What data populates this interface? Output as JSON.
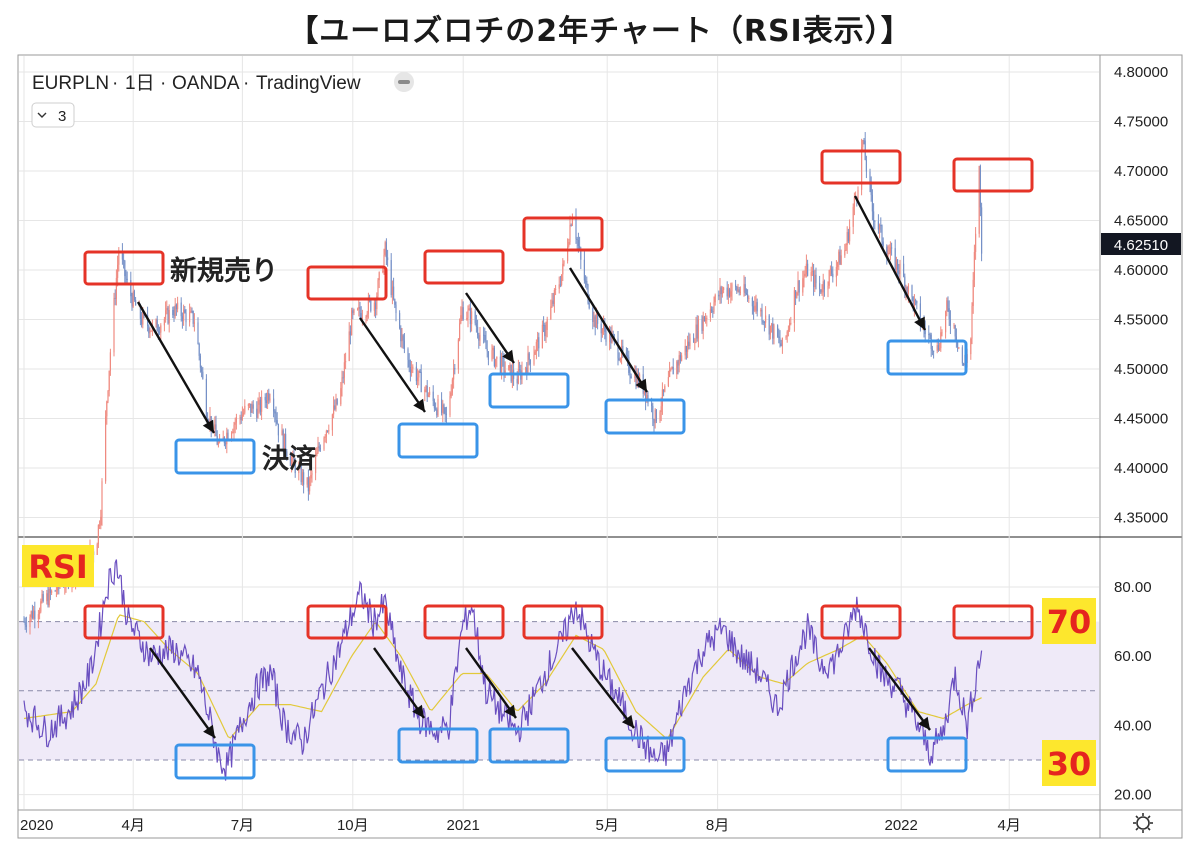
{
  "title": "【ユーロズロチの2年チャート（RSI表示）】",
  "header": {
    "symbol": "EURPLN",
    "interval": "1日",
    "broker": "OANDA",
    "platform": "TradingView",
    "dropdown_value": "3"
  },
  "annotations": {
    "sell_label": "新規売り",
    "close_label": "決済",
    "rsi_label": "RSI",
    "level_70": "70",
    "level_30": "30"
  },
  "colors": {
    "up": "#ef8a80",
    "down": "#7590c7",
    "rsi_line": "#6a4fc0",
    "rsi_ma": "#e2c93a",
    "rsi_band": "#efeaf8",
    "red_box": "#e53327",
    "blue_box": "#3a94e8",
    "label_yellow": "#fde72d"
  },
  "chart_data": [
    {
      "type": "candlestick",
      "price_axis": {
        "ticks": [
          "4.80000",
          "4.75000",
          "4.70000",
          "4.65000",
          "4.60000",
          "4.55000",
          "4.50000",
          "4.45000",
          "4.40000",
          "4.35000"
        ],
        "ylim": [
          4.315,
          4.815
        ],
        "last_price": "4.62510"
      },
      "x_ticks": [
        "2020",
        "4月",
        "7月",
        "10月",
        "2021",
        "5月",
        "8月",
        "2022",
        "4月"
      ],
      "price_path": [
        [
          "2020-01-01",
          4.245
        ],
        [
          "2020-02-15",
          4.3
        ],
        [
          "2020-03-01",
          4.32
        ],
        [
          "2020-03-05",
          4.36
        ],
        [
          "2020-03-10",
          4.47
        ],
        [
          "2020-03-15",
          4.55
        ],
        [
          "2020-03-20",
          4.62
        ],
        [
          "2020-03-28",
          4.58
        ],
        [
          "2020-04-08",
          4.55
        ],
        [
          "2020-04-18",
          4.54
        ],
        [
          "2020-05-05",
          4.56
        ],
        [
          "2020-05-22",
          4.55
        ],
        [
          "2020-06-01",
          4.46
        ],
        [
          "2020-06-12",
          4.42
        ],
        [
          "2020-06-20",
          4.44
        ],
        [
          "2020-07-05",
          4.46
        ],
        [
          "2020-07-15",
          4.46
        ],
        [
          "2020-07-25",
          4.48
        ],
        [
          "2020-07-31",
          4.44
        ],
        [
          "2020-08-10",
          4.41
        ],
        [
          "2020-08-25",
          4.38
        ],
        [
          "2020-09-05",
          4.43
        ],
        [
          "2020-09-20",
          4.47
        ],
        [
          "2020-09-30",
          4.55
        ],
        [
          "2020-10-10",
          4.56
        ],
        [
          "2020-10-20",
          4.57
        ],
        [
          "2020-10-28",
          4.62
        ],
        [
          "2020-11-05",
          4.56
        ],
        [
          "2020-11-15",
          4.51
        ],
        [
          "2020-11-25",
          4.49
        ],
        [
          "2020-12-05",
          4.47
        ],
        [
          "2020-12-18",
          4.45
        ],
        [
          "2020-12-31",
          4.56
        ],
        [
          "2021-01-10",
          4.55
        ],
        [
          "2021-01-20",
          4.52
        ],
        [
          "2021-02-05",
          4.5
        ],
        [
          "2021-02-15",
          4.49
        ],
        [
          "2021-02-25",
          4.51
        ],
        [
          "2021-03-10",
          4.54
        ],
        [
          "2021-03-25",
          4.6
        ],
        [
          "2021-04-02",
          4.66
        ],
        [
          "2021-04-10",
          4.6
        ],
        [
          "2021-04-20",
          4.55
        ],
        [
          "2021-05-05",
          4.53
        ],
        [
          "2021-05-20",
          4.5
        ],
        [
          "2021-06-01",
          4.48
        ],
        [
          "2021-06-10",
          4.45
        ],
        [
          "2021-06-25",
          4.5
        ],
        [
          "2021-07-10",
          4.53
        ],
        [
          "2021-07-25",
          4.56
        ],
        [
          "2021-08-05",
          4.58
        ],
        [
          "2021-08-20",
          4.58
        ],
        [
          "2021-09-05",
          4.56
        ],
        [
          "2021-09-15",
          4.54
        ],
        [
          "2021-09-25",
          4.52
        ],
        [
          "2021-10-05",
          4.58
        ],
        [
          "2021-10-15",
          4.6
        ],
        [
          "2021-10-25",
          4.58
        ],
        [
          "2021-11-05",
          4.6
        ],
        [
          "2021-11-15",
          4.62
        ],
        [
          "2021-11-25",
          4.68
        ],
        [
          "2021-11-30",
          4.73
        ],
        [
          "2021-12-08",
          4.66
        ],
        [
          "2021-12-20",
          4.62
        ],
        [
          "2021-12-31",
          4.6
        ],
        [
          "2022-01-10",
          4.57
        ],
        [
          "2022-01-20",
          4.54
        ],
        [
          "2022-01-31",
          4.52
        ],
        [
          "2022-02-08",
          4.56
        ],
        [
          "2022-02-15",
          4.54
        ],
        [
          "2022-02-22",
          4.5
        ],
        [
          "2022-02-28",
          4.53
        ],
        [
          "2022-03-04",
          4.64
        ],
        [
          "2022-03-07",
          4.7
        ],
        [
          "2022-03-09",
          4.6251
        ]
      ]
    },
    {
      "type": "line",
      "title": "RSI",
      "ylim": [
        20,
        92
      ],
      "y_ticks": [
        "80.00",
        "60.00",
        "40.00",
        "20.00"
      ],
      "bands": [
        30,
        50,
        70
      ],
      "rsi_path": [
        [
          "2020-01-01",
          45
        ],
        [
          "2020-01-20",
          38
        ],
        [
          "2020-02-10",
          45
        ],
        [
          "2020-02-25",
          55
        ],
        [
          "2020-03-05",
          70
        ],
        [
          "2020-03-10",
          80
        ],
        [
          "2020-03-18",
          87
        ],
        [
          "2020-03-28",
          70
        ],
        [
          "2020-04-15",
          60
        ],
        [
          "2020-05-05",
          62
        ],
        [
          "2020-05-25",
          55
        ],
        [
          "2020-06-05",
          40
        ],
        [
          "2020-06-12",
          30
        ],
        [
          "2020-06-18",
          28
        ],
        [
          "2020-07-05",
          45
        ],
        [
          "2020-07-15",
          52
        ],
        [
          "2020-07-25",
          55
        ],
        [
          "2020-08-05",
          40
        ],
        [
          "2020-08-20",
          35
        ],
        [
          "2020-09-05",
          50
        ],
        [
          "2020-09-20",
          62
        ],
        [
          "2020-09-30",
          72
        ],
        [
          "2020-10-08",
          78
        ],
        [
          "2020-10-18",
          70
        ],
        [
          "2020-10-28",
          75
        ],
        [
          "2020-11-10",
          55
        ],
        [
          "2020-11-25",
          42
        ],
        [
          "2020-12-10",
          38
        ],
        [
          "2020-12-20",
          40
        ],
        [
          "2020-12-31",
          68
        ],
        [
          "2021-01-08",
          75
        ],
        [
          "2021-01-20",
          50
        ],
        [
          "2021-02-05",
          42
        ],
        [
          "2021-02-15",
          38
        ],
        [
          "2021-02-25",
          45
        ],
        [
          "2021-03-10",
          55
        ],
        [
          "2021-03-25",
          65
        ],
        [
          "2021-04-05",
          75
        ],
        [
          "2021-04-15",
          65
        ],
        [
          "2021-04-28",
          55
        ],
        [
          "2021-05-10",
          48
        ],
        [
          "2021-05-25",
          38
        ],
        [
          "2021-06-10",
          30
        ],
        [
          "2021-06-20",
          32
        ],
        [
          "2021-07-05",
          50
        ],
        [
          "2021-07-20",
          62
        ],
        [
          "2021-08-05",
          68
        ],
        [
          "2021-08-20",
          60
        ],
        [
          "2021-09-05",
          55
        ],
        [
          "2021-09-20",
          45
        ],
        [
          "2021-10-05",
          60
        ],
        [
          "2021-10-15",
          68
        ],
        [
          "2021-10-25",
          58
        ],
        [
          "2021-11-05",
          58
        ],
        [
          "2021-11-15",
          65
        ],
        [
          "2021-11-25",
          75
        ],
        [
          "2021-12-05",
          65
        ],
        [
          "2021-12-15",
          55
        ],
        [
          "2021-12-31",
          50
        ],
        [
          "2022-01-15",
          40
        ],
        [
          "2022-01-25",
          32
        ],
        [
          "2022-02-05",
          38
        ],
        [
          "2022-02-15",
          55
        ],
        [
          "2022-02-25",
          40
        ],
        [
          "2022-03-05",
          55
        ],
        [
          "2022-03-09",
          63
        ]
      ],
      "ma_path": [
        [
          "2020-01-01",
          42
        ],
        [
          "2020-02-10",
          44
        ],
        [
          "2020-03-01",
          52
        ],
        [
          "2020-03-20",
          72
        ],
        [
          "2020-04-10",
          70
        ],
        [
          "2020-05-01",
          62
        ],
        [
          "2020-05-25",
          55
        ],
        [
          "2020-06-20",
          36
        ],
        [
          "2020-07-15",
          46
        ],
        [
          "2020-08-10",
          46
        ],
        [
          "2020-09-05",
          44
        ],
        [
          "2020-09-30",
          60
        ],
        [
          "2020-10-20",
          70
        ],
        [
          "2020-11-10",
          60
        ],
        [
          "2020-12-05",
          44
        ],
        [
          "2020-12-31",
          55
        ],
        [
          "2021-01-20",
          55
        ],
        [
          "2021-02-15",
          44
        ],
        [
          "2021-03-10",
          52
        ],
        [
          "2021-04-05",
          66
        ],
        [
          "2021-04-28",
          62
        ],
        [
          "2021-05-25",
          44
        ],
        [
          "2021-06-20",
          36
        ],
        [
          "2021-07-20",
          54
        ],
        [
          "2021-08-10",
          62
        ],
        [
          "2021-09-05",
          54
        ],
        [
          "2021-09-25",
          52
        ],
        [
          "2021-10-15",
          58
        ],
        [
          "2021-11-10",
          62
        ],
        [
          "2021-11-30",
          66
        ],
        [
          "2021-12-20",
          58
        ],
        [
          "2022-01-15",
          44
        ],
        [
          "2022-02-05",
          42
        ],
        [
          "2022-02-25",
          46
        ],
        [
          "2022-03-09",
          48
        ]
      ]
    }
  ]
}
